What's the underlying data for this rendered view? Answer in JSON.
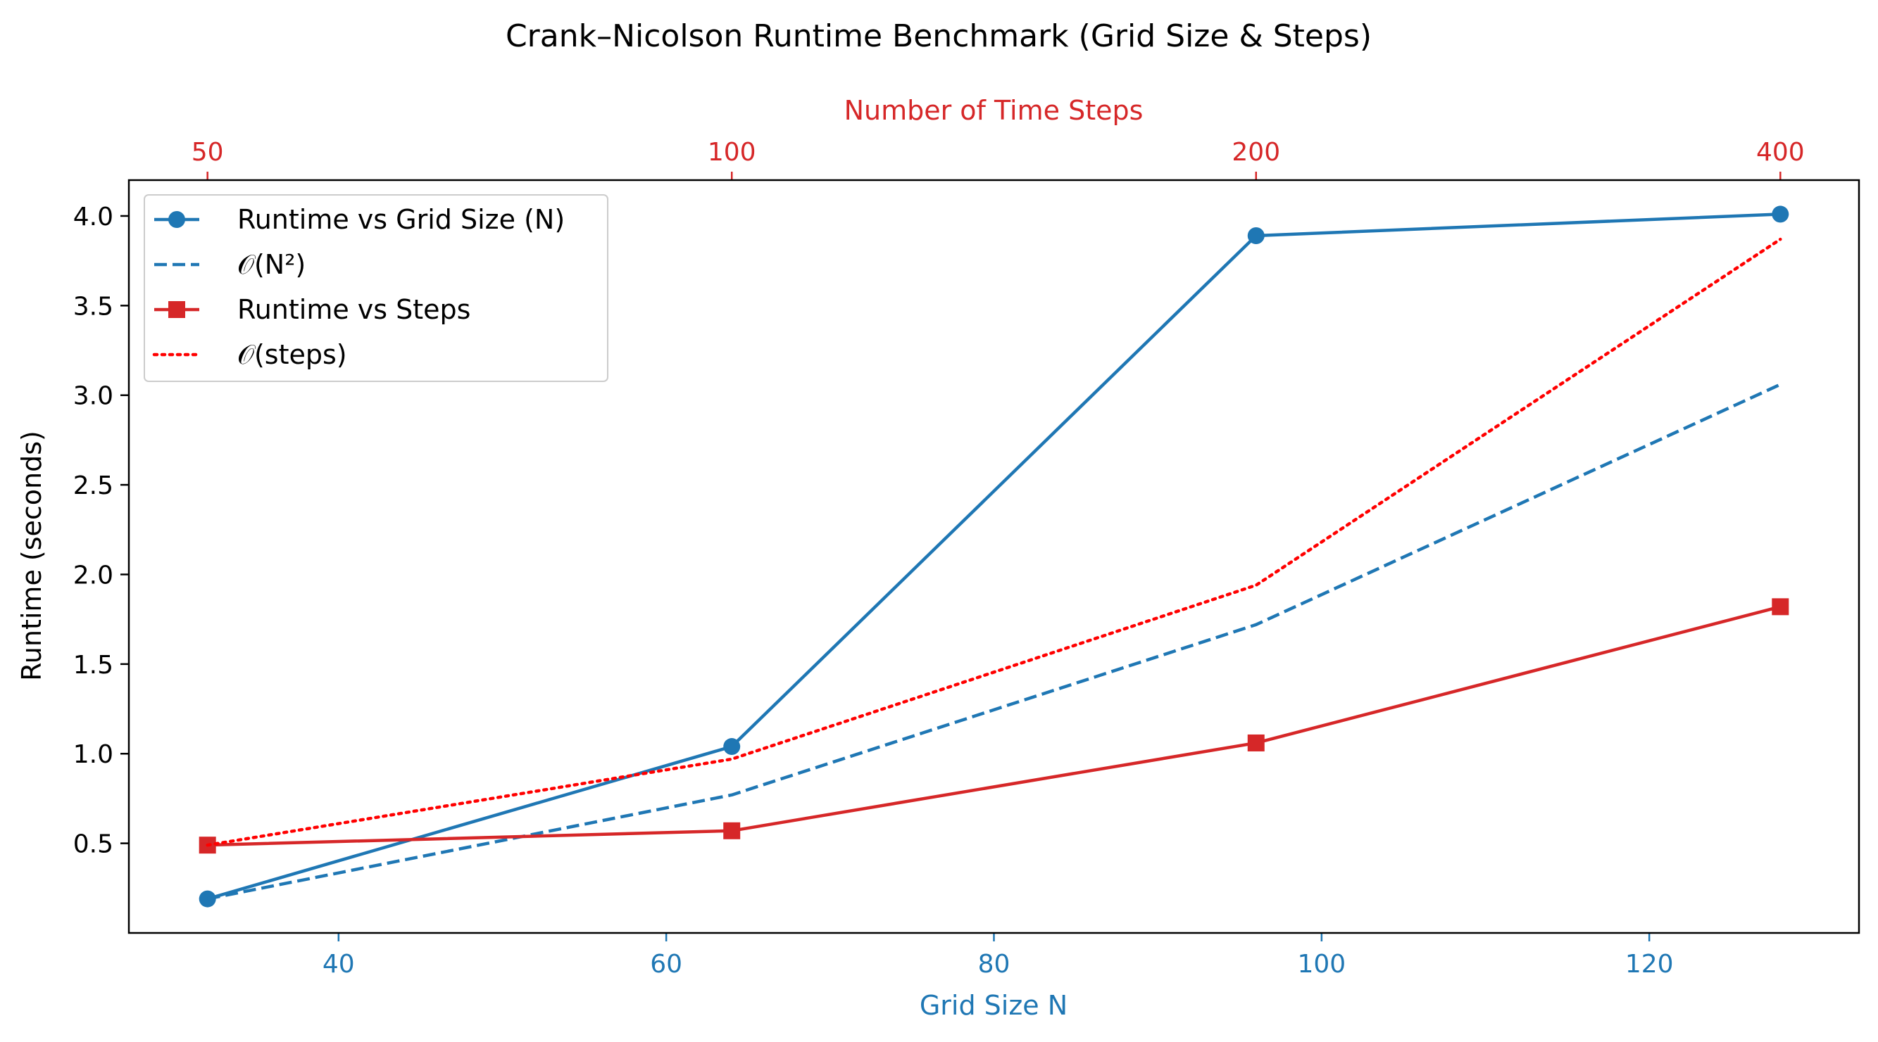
{
  "chart_data": {
    "type": "line",
    "title": "Crank–Nicolson Runtime Benchmark (Grid Size & Steps)",
    "xlabel": "Grid Size N",
    "x2label": "Number of Time Steps",
    "ylabel": "Runtime (seconds)",
    "xlim": [
      27.2,
      132.8
    ],
    "ylim": [
      0.0,
      4.2
    ],
    "x_ticks": [
      40,
      60,
      80,
      100,
      120
    ],
    "x_tick_labels": [
      "40",
      "60",
      "80",
      "100",
      "120"
    ],
    "x2_ticks": [
      32,
      64,
      96,
      128
    ],
    "x2_tick_labels": [
      "50",
      "100",
      "200",
      "400"
    ],
    "y_ticks": [
      0.5,
      1.0,
      1.5,
      2.0,
      2.5,
      3.0,
      3.5,
      4.0
    ],
    "y_tick_labels": [
      "0.5",
      "1.0",
      "1.5",
      "2.0",
      "2.5",
      "3.0",
      "3.5",
      "4.0"
    ],
    "grid": false,
    "legend_position": "top-left",
    "x": [
      32,
      64,
      96,
      128
    ],
    "series": [
      {
        "name": "Runtime vs Grid Size (N)",
        "values": [
          0.19,
          1.04,
          3.89,
          4.01
        ],
        "color": "#1f77b4",
        "style": "solid",
        "marker": "circle"
      },
      {
        "name": "𝒪(N²)",
        "values": [
          0.19,
          0.77,
          1.72,
          3.06
        ],
        "color": "#1f77b4",
        "style": "dashed",
        "marker": "none"
      },
      {
        "name": "Runtime vs Steps",
        "values": [
          0.49,
          0.57,
          1.06,
          1.82
        ],
        "color": "#d62728",
        "style": "solid",
        "marker": "square"
      },
      {
        "name": "𝒪(steps)",
        "values": [
          0.49,
          0.97,
          1.94,
          3.87
        ],
        "color": "#ff0000",
        "style": "dotted",
        "marker": "none"
      }
    ],
    "colors": {
      "bottom_axis": "#1f77b4",
      "top_axis": "#d62728",
      "axes_frame": "#000000"
    }
  }
}
